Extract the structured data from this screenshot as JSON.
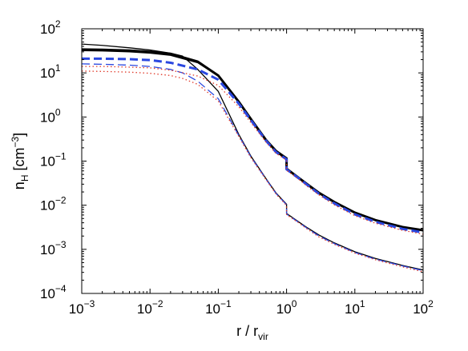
{
  "chart_data": {
    "type": "line",
    "xlabel": {
      "main": "r / r",
      "sub": "vir"
    },
    "ylabel": {
      "main": "n",
      "sub": "H",
      "unit_open": " [cm",
      "sup": "−3",
      "unit_close": "]"
    },
    "x_scale": "log",
    "y_scale": "log",
    "xlim": [
      0.001,
      100
    ],
    "ylim": [
      0.0001,
      100
    ],
    "x_ticks": [
      {
        "base": "10",
        "exp": "−3",
        "value": 0.001
      },
      {
        "base": "10",
        "exp": "−2",
        "value": 0.01
      },
      {
        "base": "10",
        "exp": "−1",
        "value": 0.1
      },
      {
        "base": "10",
        "exp": "0",
        "value": 1
      },
      {
        "base": "10",
        "exp": "1",
        "value": 10
      },
      {
        "base": "10",
        "exp": "2",
        "value": 100
      }
    ],
    "y_ticks": [
      {
        "base": "10",
        "exp": "−4",
        "value": 0.0001
      },
      {
        "base": "10",
        "exp": "−3",
        "value": 0.001
      },
      {
        "base": "10",
        "exp": "−2",
        "value": 0.01
      },
      {
        "base": "10",
        "exp": "−1",
        "value": 0.1
      },
      {
        "base": "10",
        "exp": "0",
        "value": 1
      },
      {
        "base": "10",
        "exp": "1",
        "value": 10
      },
      {
        "base": "10",
        "exp": "2",
        "value": 100
      }
    ],
    "grid": false,
    "legend": "none",
    "series": [
      {
        "color": "#000000",
        "style": "solid",
        "weight": "thick",
        "x": [
          0.001,
          0.002,
          0.005,
          0.01,
          0.02,
          0.05,
          0.1,
          0.2,
          0.3,
          0.5,
          0.7,
          1.0,
          1.0,
          1.5,
          2,
          3,
          5,
          10,
          20,
          50,
          100
        ],
        "y": [
          34,
          33.5,
          32,
          30,
          27,
          18,
          8.7,
          2.2,
          0.9,
          0.3,
          0.17,
          0.115,
          0.067,
          0.042,
          0.03,
          0.019,
          0.0118,
          0.0068,
          0.0046,
          0.0032,
          0.0027
        ]
      },
      {
        "color": "#000000",
        "style": "solid",
        "weight": "thin",
        "x": [
          0.001,
          0.002,
          0.005,
          0.01,
          0.02,
          0.03,
          0.05,
          0.1,
          0.2,
          0.3,
          0.5,
          0.7,
          1.0,
          1.0,
          1.5,
          2,
          3,
          5,
          10,
          20,
          50,
          100
        ],
        "y": [
          45,
          42,
          37,
          33,
          28,
          24,
          12,
          3.8,
          0.4,
          0.13,
          0.04,
          0.019,
          0.0105,
          0.0065,
          0.0042,
          0.0031,
          0.0021,
          0.0014,
          0.00088,
          0.00062,
          0.00043,
          0.00034
        ]
      },
      {
        "color": "#000000",
        "style": "solid",
        "weight": "thin",
        "x": [
          0.001,
          0.002,
          0.005,
          0.01,
          0.02,
          0.05,
          0.1,
          0.2,
          0.3,
          0.5,
          0.7,
          1.0
        ],
        "y": [
          32,
          31.5,
          30,
          28,
          25,
          17,
          8.5,
          2.1,
          0.88,
          0.29,
          0.16,
          0.11
        ]
      },
      {
        "color": "#2a47e0",
        "style": "dashed",
        "weight": "thick",
        "x": [
          0.001,
          0.002,
          0.005,
          0.01,
          0.02,
          0.05,
          0.1,
          0.2,
          0.3,
          0.5,
          0.7,
          1.0,
          1.0,
          1.5,
          2,
          3,
          5,
          10,
          20,
          50,
          100
        ],
        "y": [
          21,
          21,
          20.5,
          19.5,
          17,
          12,
          7,
          2,
          0.85,
          0.29,
          0.16,
          0.11,
          0.065,
          0.041,
          0.029,
          0.018,
          0.011,
          0.0062,
          0.0042,
          0.0029,
          0.0024
        ]
      },
      {
        "color": "#2a47e0",
        "style": "dashed",
        "weight": "thin",
        "x": [
          0.001,
          0.002,
          0.005,
          0.01,
          0.02,
          0.03,
          0.05,
          0.1,
          0.2,
          0.3,
          0.5,
          0.7,
          1.0,
          1.0,
          1.5,
          2,
          3,
          5,
          10,
          20,
          50,
          100
        ],
        "y": [
          16,
          15.7,
          15,
          14,
          12,
          10,
          6.5,
          2.6,
          0.38,
          0.125,
          0.039,
          0.0185,
          0.0102,
          0.0063,
          0.0041,
          0.003,
          0.002,
          0.00135,
          0.00085,
          0.0006,
          0.00042,
          0.00033
        ]
      },
      {
        "color": "#e03a2a",
        "style": "dotted",
        "weight": "thin",
        "x": [
          0.001,
          0.002,
          0.005,
          0.01,
          0.02,
          0.05,
          0.1,
          0.2,
          0.3,
          0.5,
          0.7,
          1.0,
          1.0,
          1.5,
          2,
          3,
          5,
          10,
          20,
          50,
          100
        ],
        "y": [
          14,
          14,
          13.5,
          13,
          11.5,
          8.5,
          5.2,
          1.7,
          0.75,
          0.27,
          0.15,
          0.105,
          0.062,
          0.039,
          0.027,
          0.017,
          0.0102,
          0.0058,
          0.0039,
          0.0027,
          0.0022
        ]
      },
      {
        "color": "#e03a2a",
        "style": "dotted",
        "weight": "thin",
        "x": [
          0.001,
          0.002,
          0.005,
          0.01,
          0.02,
          0.03,
          0.05,
          0.1,
          0.2,
          0.3,
          0.5,
          0.7,
          1.0,
          1.0,
          1.5,
          2,
          3,
          5,
          10,
          20,
          50,
          100
        ],
        "y": [
          11,
          10.8,
          10.4,
          9.8,
          8.7,
          7.5,
          5.5,
          2.3,
          0.36,
          0.12,
          0.038,
          0.018,
          0.0099,
          0.0061,
          0.004,
          0.0029,
          0.0019,
          0.0013,
          0.00082,
          0.00058,
          0.0004,
          0.00031
        ]
      }
    ]
  }
}
